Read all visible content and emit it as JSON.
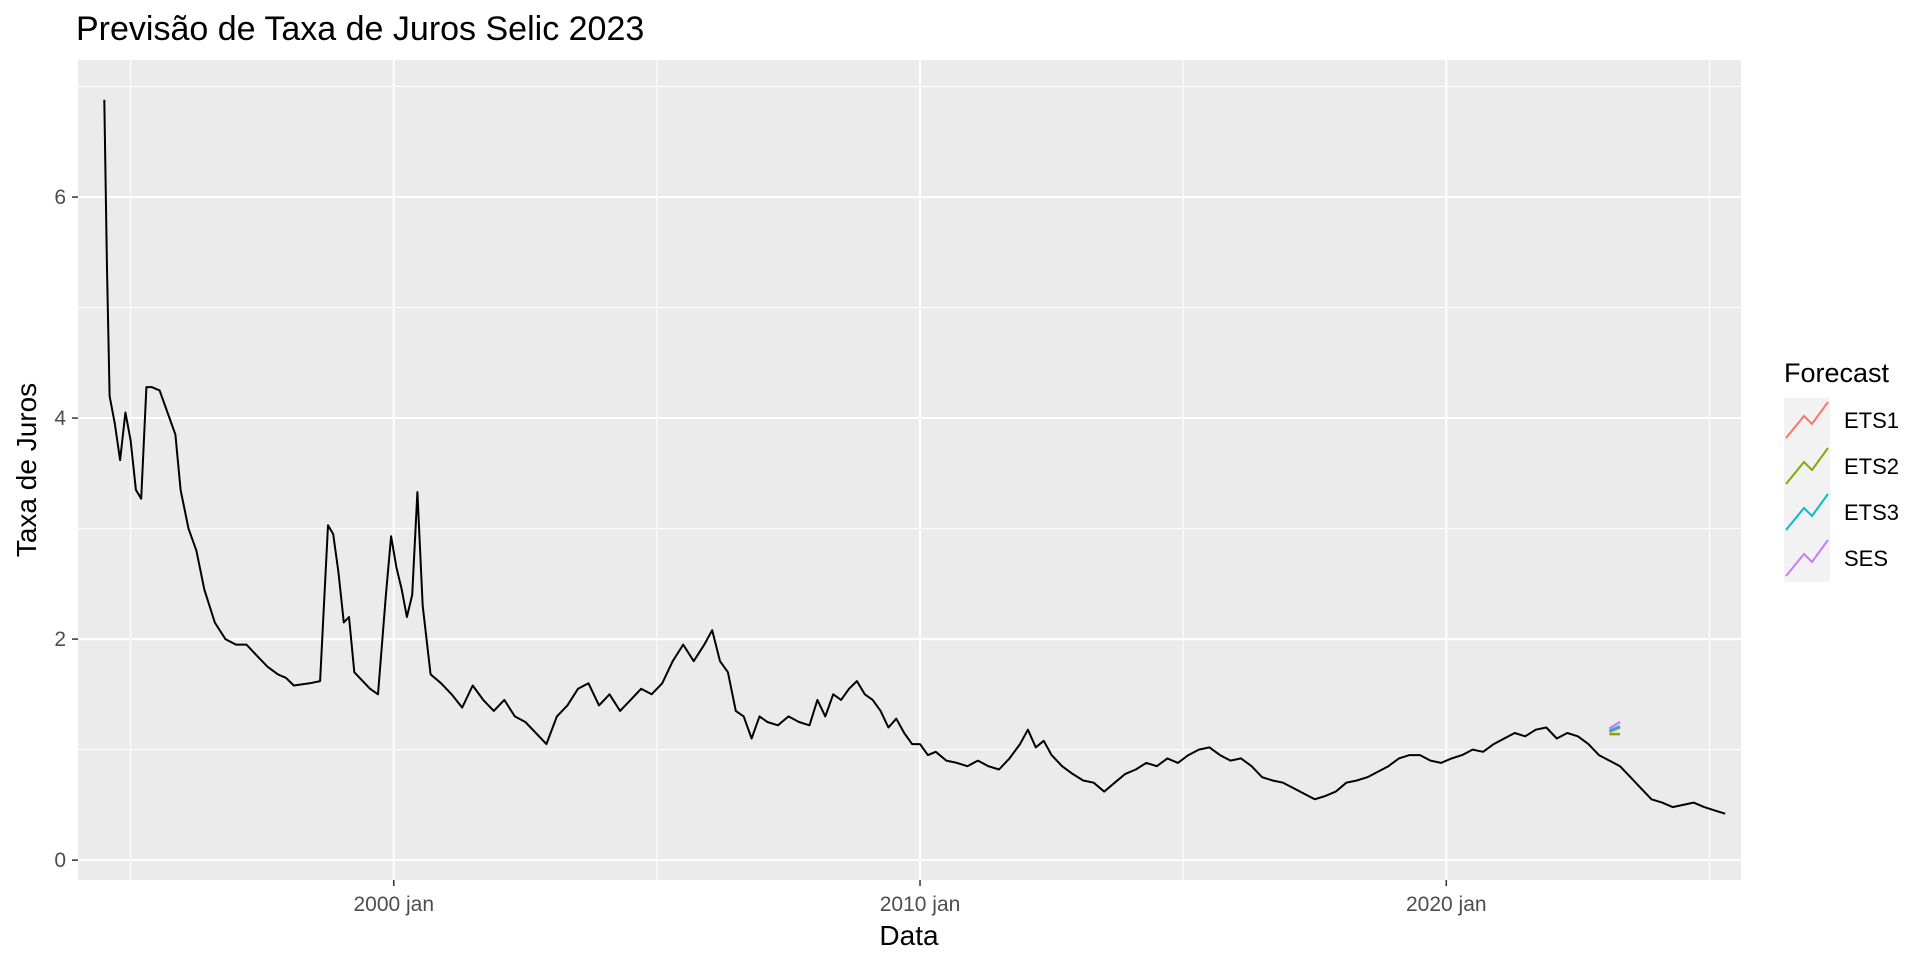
{
  "chart_data": {
    "type": "line",
    "title": "Previsão de Taxa de Juros Selic 2023",
    "xlabel": "Data",
    "ylabel": "Taxa de Juros",
    "xlim": [
      1994.0,
      2025.6
    ],
    "ylim": [
      -0.18,
      7.24
    ],
    "x_ticks": [
      {
        "value": 2000.0,
        "label": "2000 jan"
      },
      {
        "value": 2010.0,
        "label": "2010 jan"
      },
      {
        "value": 2020.0,
        "label": "2020 jan"
      }
    ],
    "x_minor_ticks": [
      1995.0,
      2005.0,
      2015.0,
      2025.0
    ],
    "y_ticks": [
      {
        "value": 0,
        "label": "0"
      },
      {
        "value": 2,
        "label": "2"
      },
      {
        "value": 4,
        "label": "4"
      },
      {
        "value": 6,
        "label": "6"
      }
    ],
    "y_minor_ticks": [
      1,
      3,
      5,
      7
    ],
    "grid": true,
    "legend_position": "right",
    "legend_title": "Forecast",
    "history": {
      "color": "#000000",
      "points": [
        [
          1994.5,
          6.88
        ],
        [
          1994.55,
          5.4
        ],
        [
          1994.6,
          4.2
        ],
        [
          1994.7,
          3.95
        ],
        [
          1994.8,
          3.62
        ],
        [
          1994.9,
          4.05
        ],
        [
          1995.0,
          3.8
        ],
        [
          1995.1,
          3.35
        ],
        [
          1995.2,
          3.27
        ],
        [
          1995.3,
          4.28
        ],
        [
          1995.4,
          4.28
        ],
        [
          1995.55,
          4.25
        ],
        [
          1995.7,
          4.05
        ],
        [
          1995.85,
          3.85
        ],
        [
          1995.95,
          3.35
        ],
        [
          1996.1,
          3.0
        ],
        [
          1996.25,
          2.8
        ],
        [
          1996.4,
          2.45
        ],
        [
          1996.6,
          2.15
        ],
        [
          1996.8,
          2.0
        ],
        [
          1997.0,
          1.95
        ],
        [
          1997.2,
          1.95
        ],
        [
          1997.4,
          1.85
        ],
        [
          1997.6,
          1.75
        ],
        [
          1997.8,
          1.68
        ],
        [
          1997.95,
          1.65
        ],
        [
          1998.1,
          1.58
        ],
        [
          1998.4,
          1.6
        ],
        [
          1998.6,
          1.62
        ],
        [
          1998.75,
          3.03
        ],
        [
          1998.85,
          2.95
        ],
        [
          1998.95,
          2.6
        ],
        [
          1999.05,
          2.15
        ],
        [
          1999.15,
          2.2
        ],
        [
          1999.25,
          1.7
        ],
        [
          1999.35,
          1.65
        ],
        [
          1999.55,
          1.55
        ],
        [
          1999.7,
          1.5
        ],
        [
          1999.85,
          2.4
        ],
        [
          1999.95,
          2.93
        ],
        [
          2000.05,
          2.65
        ],
        [
          2000.15,
          2.45
        ],
        [
          2000.25,
          2.2
        ],
        [
          2000.35,
          2.4
        ],
        [
          2000.45,
          3.33
        ],
        [
          2000.55,
          2.3
        ],
        [
          2000.7,
          1.68
        ],
        [
          2000.9,
          1.6
        ],
        [
          2001.1,
          1.5
        ],
        [
          2001.3,
          1.38
        ],
        [
          2001.5,
          1.58
        ],
        [
          2001.7,
          1.45
        ],
        [
          2001.9,
          1.35
        ],
        [
          2002.1,
          1.45
        ],
        [
          2002.3,
          1.3
        ],
        [
          2002.5,
          1.25
        ],
        [
          2002.7,
          1.15
        ],
        [
          2002.9,
          1.05
        ],
        [
          2003.1,
          1.3
        ],
        [
          2003.3,
          1.4
        ],
        [
          2003.5,
          1.55
        ],
        [
          2003.7,
          1.6
        ],
        [
          2003.9,
          1.4
        ],
        [
          2004.1,
          1.5
        ],
        [
          2004.3,
          1.35
        ],
        [
          2004.5,
          1.45
        ],
        [
          2004.7,
          1.55
        ],
        [
          2004.9,
          1.5
        ],
        [
          2005.1,
          1.6
        ],
        [
          2005.3,
          1.8
        ],
        [
          2005.5,
          1.95
        ],
        [
          2005.7,
          1.8
        ],
        [
          2005.9,
          1.95
        ],
        [
          2006.05,
          2.08
        ],
        [
          2006.2,
          1.8
        ],
        [
          2006.35,
          1.7
        ],
        [
          2006.5,
          1.35
        ],
        [
          2006.65,
          1.3
        ],
        [
          2006.8,
          1.1
        ],
        [
          2006.95,
          1.3
        ],
        [
          2007.1,
          1.25
        ],
        [
          2007.3,
          1.22
        ],
        [
          2007.5,
          1.3
        ],
        [
          2007.7,
          1.25
        ],
        [
          2007.9,
          1.22
        ],
        [
          2008.05,
          1.45
        ],
        [
          2008.2,
          1.3
        ],
        [
          2008.35,
          1.5
        ],
        [
          2008.5,
          1.45
        ],
        [
          2008.65,
          1.55
        ],
        [
          2008.8,
          1.62
        ],
        [
          2008.95,
          1.5
        ],
        [
          2009.1,
          1.45
        ],
        [
          2009.25,
          1.35
        ],
        [
          2009.4,
          1.2
        ],
        [
          2009.55,
          1.28
        ],
        [
          2009.7,
          1.15
        ],
        [
          2009.85,
          1.05
        ],
        [
          2010.0,
          1.05
        ],
        [
          2010.15,
          0.95
        ],
        [
          2010.3,
          0.98
        ],
        [
          2010.5,
          0.9
        ],
        [
          2010.7,
          0.88
        ],
        [
          2010.9,
          0.85
        ],
        [
          2011.1,
          0.9
        ],
        [
          2011.3,
          0.85
        ],
        [
          2011.5,
          0.82
        ],
        [
          2011.7,
          0.92
        ],
        [
          2011.9,
          1.05
        ],
        [
          2012.05,
          1.18
        ],
        [
          2012.2,
          1.02
        ],
        [
          2012.35,
          1.08
        ],
        [
          2012.5,
          0.95
        ],
        [
          2012.7,
          0.85
        ],
        [
          2012.9,
          0.78
        ],
        [
          2013.1,
          0.72
        ],
        [
          2013.3,
          0.7
        ],
        [
          2013.5,
          0.62
        ],
        [
          2013.7,
          0.7
        ],
        [
          2013.9,
          0.78
        ],
        [
          2014.1,
          0.82
        ],
        [
          2014.3,
          0.88
        ],
        [
          2014.5,
          0.85
        ],
        [
          2014.7,
          0.92
        ],
        [
          2014.9,
          0.88
        ],
        [
          2015.1,
          0.95
        ],
        [
          2015.3,
          1.0
        ],
        [
          2015.5,
          1.02
        ],
        [
          2015.7,
          0.95
        ],
        [
          2015.9,
          0.9
        ],
        [
          2016.1,
          0.92
        ],
        [
          2016.3,
          0.85
        ],
        [
          2016.5,
          0.75
        ],
        [
          2016.7,
          0.72
        ],
        [
          2016.9,
          0.7
        ],
        [
          2017.1,
          0.65
        ],
        [
          2017.3,
          0.6
        ],
        [
          2017.5,
          0.55
        ],
        [
          2017.7,
          0.58
        ],
        [
          2017.9,
          0.62
        ],
        [
          2018.1,
          0.7
        ],
        [
          2018.3,
          0.72
        ],
        [
          2018.5,
          0.75
        ],
        [
          2018.7,
          0.8
        ],
        [
          2018.9,
          0.85
        ],
        [
          2019.1,
          0.92
        ],
        [
          2019.3,
          0.95
        ],
        [
          2019.5,
          0.95
        ],
        [
          2019.7,
          0.9
        ],
        [
          2019.9,
          0.88
        ],
        [
          2020.1,
          0.92
        ],
        [
          2020.3,
          0.95
        ],
        [
          2020.5,
          1.0
        ],
        [
          2020.7,
          0.98
        ],
        [
          2020.9,
          1.05
        ],
        [
          2021.1,
          1.1
        ],
        [
          2021.3,
          1.15
        ],
        [
          2021.5,
          1.12
        ],
        [
          2021.7,
          1.18
        ],
        [
          2021.9,
          1.2
        ],
        [
          2022.1,
          1.1
        ],
        [
          2022.3,
          1.15
        ],
        [
          2022.5,
          1.12
        ],
        [
          2022.7,
          1.05
        ],
        [
          2022.9,
          0.95
        ],
        [
          2023.1,
          0.9
        ],
        [
          2023.3,
          0.85
        ],
        [
          2023.5,
          0.75
        ],
        [
          2023.7,
          0.65
        ],
        [
          2023.9,
          0.55
        ],
        [
          2024.1,
          0.52
        ],
        [
          2024.3,
          0.48
        ],
        [
          2024.5,
          0.5
        ],
        [
          2024.7,
          0.52
        ],
        [
          2024.9,
          0.48
        ],
        [
          2025.1,
          0.45
        ],
        [
          2025.3,
          0.42
        ]
      ]
    },
    "series": [
      {
        "name": "ETS1",
        "color": "#f8766d",
        "points": [
          [
            2023.1,
            1.16
          ],
          [
            2023.2,
            1.18
          ],
          [
            2023.3,
            1.2
          ]
        ]
      },
      {
        "name": "ETS2",
        "color": "#7cae00",
        "points": [
          [
            2023.1,
            1.14
          ],
          [
            2023.2,
            1.14
          ],
          [
            2023.3,
            1.14
          ]
        ]
      },
      {
        "name": "ETS3",
        "color": "#00bfc4",
        "points": [
          [
            2023.1,
            1.17
          ],
          [
            2023.2,
            1.19
          ],
          [
            2023.3,
            1.21
          ]
        ]
      },
      {
        "name": "SES",
        "color": "#c77cff",
        "points": [
          [
            2023.1,
            1.19
          ],
          [
            2023.2,
            1.22
          ],
          [
            2023.3,
            1.25
          ]
        ]
      }
    ]
  }
}
